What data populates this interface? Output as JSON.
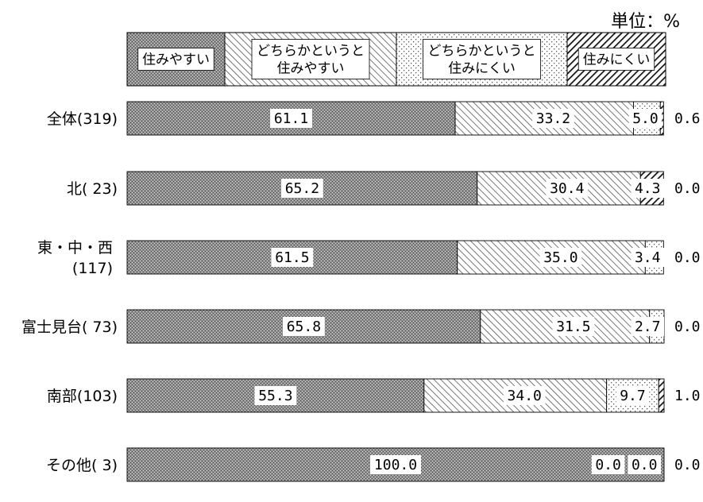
{
  "chart_data": {
    "type": "bar",
    "orientation": "horizontal",
    "stacked": true,
    "unit_label": "単位：%",
    "legend_placement": "top",
    "categories": [
      "全体(319)",
      "北( 23)",
      "東・中・西\n(117)",
      "富士見台( 73)",
      "南部(103)",
      "その他( 3)"
    ],
    "series": [
      {
        "name": "住みやすい",
        "values": [
          61.1,
          65.2,
          61.5,
          65.8,
          55.3,
          100.0
        ],
        "labels": [
          "61.1",
          "65.2",
          "61.5",
          "65.8",
          "55.3",
          "100.0"
        ]
      },
      {
        "name": "どちらかというと\n住みやすい",
        "values": [
          33.2,
          30.4,
          35.0,
          31.5,
          34.0,
          0.0
        ],
        "labels": [
          "33.2",
          "30.4",
          "35.0",
          "31.5",
          "34.0",
          "0.0"
        ]
      },
      {
        "name": "どちらかというと\n住みにくい",
        "values": [
          5.0,
          0.0,
          3.4,
          2.7,
          9.7,
          0.0
        ],
        "labels": [
          "5.0",
          "0.0",
          "3.4",
          "2.7",
          "9.7",
          "0.0"
        ]
      },
      {
        "name": "住みにくい",
        "values": [
          0.6,
          4.3,
          0.0,
          0.0,
          1.0,
          0.0
        ],
        "labels": [
          "0.6",
          "4.3",
          "0.0",
          "0.0",
          "1.0",
          "0.0"
        ]
      }
    ],
    "xlim": [
      0,
      100
    ]
  }
}
